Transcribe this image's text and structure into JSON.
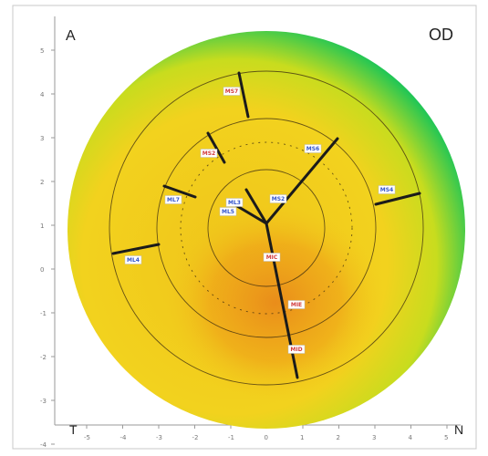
{
  "view": {
    "eye_label": "OD",
    "top_left_label": "A",
    "bottom_left_label": "T",
    "bottom_right_label": "N"
  },
  "colors": {
    "border": "#c8c8c8",
    "map_outer": "#12c45a",
    "map_mid": "#c8dc1e",
    "map_inner": "#f4d21c",
    "map_center": "#e88a12",
    "line": "#1b1b1b",
    "label_blue": "#3355cc",
    "label_red": "#d23c3c"
  },
  "radial_labels": [
    {
      "id": "top",
      "text": "MS7",
      "color": "red"
    },
    {
      "id": "upper-left-1",
      "text": "MS2",
      "color": "red"
    },
    {
      "id": "upper-right",
      "text": "MS6",
      "color": "blue"
    },
    {
      "id": "left",
      "text": "ML7",
      "color": "blue"
    },
    {
      "id": "right",
      "text": "MS4",
      "color": "blue"
    },
    {
      "id": "inner-left-1",
      "text": "ML3",
      "color": "blue"
    },
    {
      "id": "inner-left-2",
      "text": "ML5",
      "color": "blue"
    },
    {
      "id": "inner-right",
      "text": "MS2",
      "color": "blue"
    },
    {
      "id": "far-left",
      "text": "ML4",
      "color": "blue"
    },
    {
      "id": "down-1",
      "text": "MIC",
      "color": "red"
    },
    {
      "id": "down-2",
      "text": "MIE",
      "color": "red"
    },
    {
      "id": "down-3",
      "text": "MID",
      "color": "red"
    }
  ],
  "y_ticks": [
    "5",
    "4",
    "3",
    "2",
    "1",
    "0",
    "-1",
    "-2",
    "-3",
    "-4"
  ],
  "x_ticks": [
    "-5",
    "-4",
    "-3",
    "-2",
    "-1",
    "0",
    "1",
    "2",
    "3",
    "4",
    "5"
  ]
}
